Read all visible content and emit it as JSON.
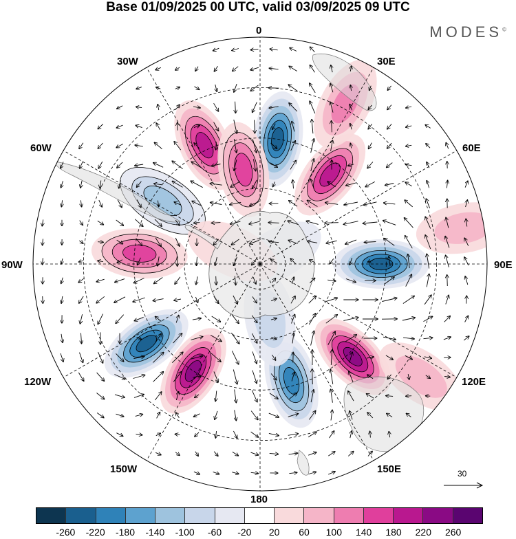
{
  "title": "Base 01/09/2025 00 UTC, valid 03/09/2025 09 UTC",
  "brand": "MODES",
  "brand_mark": "©",
  "longitude_labels": {
    "lon_0": "0",
    "lon_30e": "30E",
    "lon_60e": "60E",
    "lon_90e": "90E",
    "lon_120e": "120E",
    "lon_150e": "150E",
    "lon_180": "180",
    "lon_150w": "150W",
    "lon_120w": "120W",
    "lon_90w": "90W",
    "lon_60w": "60W",
    "lon_30w": "30W"
  },
  "reference_vector": "30",
  "colorbar": {
    "colors": [
      "#0d3550",
      "#1a5f8e",
      "#2f82b8",
      "#5da2cf",
      "#9ec3de",
      "#c8d6ea",
      "#e6e8f2",
      "#ffffff",
      "#f9dadc",
      "#f5b5c8",
      "#ee7db0",
      "#e03f9c",
      "#b9188f",
      "#8a0a84",
      "#5a0570"
    ],
    "ticks": [
      "-260",
      "-220",
      "-180",
      "-140",
      "-100",
      "-60",
      "-20",
      "20",
      "60",
      "100",
      "140",
      "180",
      "220",
      "260"
    ]
  },
  "anomaly_centers": [
    {
      "lon": 8,
      "lat": -40,
      "value": -240
    },
    {
      "lon": 38,
      "lat": -45,
      "value": 200
    },
    {
      "lon": 90,
      "lat": -42,
      "value": -230
    },
    {
      "lon": 135,
      "lat": -38,
      "value": 230
    },
    {
      "lon": 165,
      "lat": -42,
      "value": -170
    },
    {
      "lon": -148,
      "lat": -40,
      "value": 240
    },
    {
      "lon": -125,
      "lat": -35,
      "value": -240
    },
    {
      "lon": -85,
      "lat": -42,
      "value": 150
    },
    {
      "lon": -57,
      "lat": -44,
      "value": -120
    },
    {
      "lon": -25,
      "lat": -38,
      "value": 180
    },
    {
      "lon": -10,
      "lat": -52,
      "value": 150
    },
    {
      "lon": 28,
      "lat": -18,
      "value": 100
    },
    {
      "lon": 80,
      "lat": -8,
      "value": 80
    },
    {
      "lon": 125,
      "lat": -12,
      "value": 60
    },
    {
      "lon": 170,
      "lat": -68,
      "value": -60
    },
    {
      "lon": 60,
      "lat": -82,
      "value": -40
    },
    {
      "lon": -65,
      "lat": -78,
      "value": 20
    }
  ]
}
